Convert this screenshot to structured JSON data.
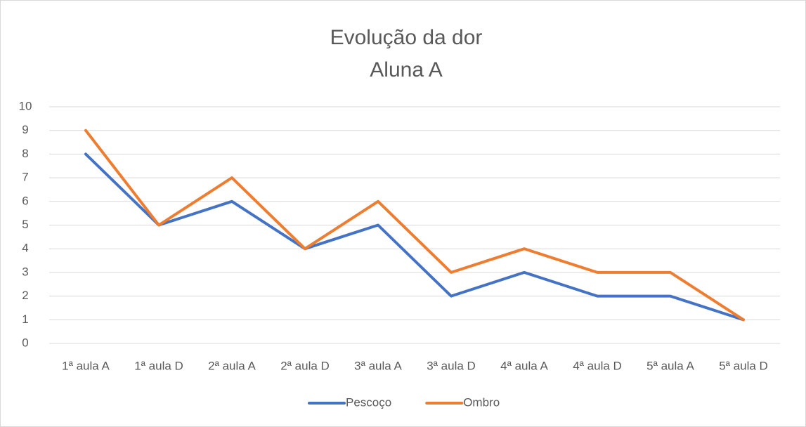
{
  "chart_data": {
    "type": "line",
    "title": "Evolução da dor",
    "subtitle": "Aluna A",
    "categories": [
      "1ª aula A",
      "1ª aula D",
      "2ª aula A",
      "2ª aula D",
      "3ª aula A",
      "3ª aula D",
      "4ª aula A",
      "4ª aula D",
      "5ª aula A",
      "5ª aula D"
    ],
    "series": [
      {
        "name": "Pescoço",
        "color": "#4472c4",
        "values": [
          8,
          5,
          6,
          4,
          5,
          2,
          3,
          2,
          2,
          1
        ]
      },
      {
        "name": "Ombro",
        "color": "#ed7d31",
        "values": [
          9,
          5,
          7,
          4,
          6,
          3,
          4,
          3,
          3,
          1
        ]
      }
    ],
    "ylim": [
      0,
      10
    ],
    "yticks": [
      0,
      1,
      2,
      3,
      4,
      5,
      6,
      7,
      8,
      9,
      10
    ],
    "grid": true,
    "legend": "bottom"
  }
}
